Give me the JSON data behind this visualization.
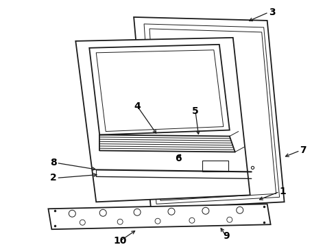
{
  "bg_color": "#ffffff",
  "line_color": "#1a1a1a",
  "label_color": "#000000",
  "label_fontsize": 10,
  "lw_main": 1.3,
  "lw_thin": 0.7,
  "lw_med": 1.0
}
